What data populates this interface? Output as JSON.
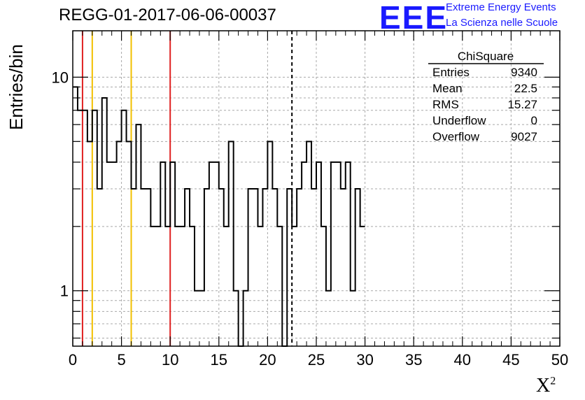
{
  "header": {
    "title": "REGG-01-2017-06-06-00037"
  },
  "logo": {
    "mark": "EEE",
    "line1": "Extreme Energy Events",
    "line2": "La Scienza nelle Scuole",
    "color": "#1a1aff"
  },
  "stats": {
    "title": "ChiSquare",
    "rows": [
      {
        "label": "Entries",
        "value": "9340"
      },
      {
        "label": "Mean",
        "value": "22.5"
      },
      {
        "label": "RMS",
        "value": "15.27"
      },
      {
        "label": "Underflow",
        "value": "0"
      },
      {
        "label": "Overflow",
        "value": "9027"
      }
    ]
  },
  "chart_data": {
    "type": "histogram",
    "xlabel": "X",
    "xlabel_sup": "2",
    "ylabel": "Entries/bin",
    "xlim": [
      0,
      50
    ],
    "ylim": [
      0.55,
      16.5
    ],
    "log_y": true,
    "grid": true,
    "bin_width": 0.5,
    "x_ticks": [
      "0",
      "5",
      "10",
      "15",
      "20",
      "25",
      "30",
      "35",
      "40",
      "45",
      "50"
    ],
    "y_tick_labels": [
      {
        "value": 1,
        "label": "1"
      },
      {
        "value": 10,
        "label": "10"
      }
    ],
    "values": [
      9,
      7,
      7,
      5,
      7,
      3,
      8,
      4,
      4,
      5,
      7,
      5,
      3,
      6,
      3,
      3,
      2,
      2,
      4,
      2,
      4,
      2,
      2,
      3,
      2,
      1,
      1,
      3,
      4,
      4,
      3,
      2,
      5,
      1,
      0,
      1,
      3,
      3,
      2,
      3,
      5,
      3,
      2,
      0,
      3,
      2,
      3,
      4,
      5,
      3,
      4,
      2,
      1,
      4,
      4,
      3,
      4,
      1,
      3,
      2
    ],
    "vertical_lines": [
      {
        "x": 1,
        "color": "#e02020",
        "style": "solid"
      },
      {
        "x": 2,
        "color": "#f2c000",
        "style": "solid"
      },
      {
        "x": 6,
        "color": "#f2c000",
        "style": "solid"
      },
      {
        "x": 10,
        "color": "#e02020",
        "style": "solid"
      },
      {
        "x": 22.5,
        "color": "#000000",
        "style": "dashed"
      }
    ]
  }
}
